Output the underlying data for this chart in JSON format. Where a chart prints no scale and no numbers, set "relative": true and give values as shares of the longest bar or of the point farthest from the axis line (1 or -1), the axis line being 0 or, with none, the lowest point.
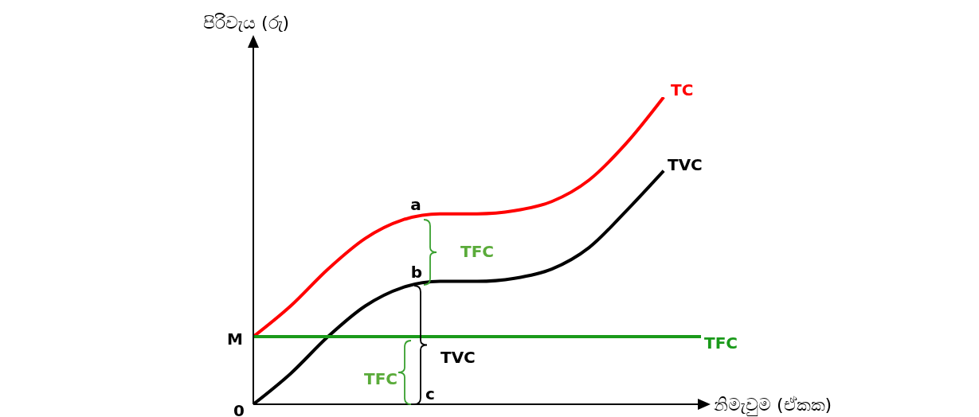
{
  "chart_data": {
    "type": "line",
    "relative": true,
    "xlabel": "නිමැවුම (ඒකක)",
    "ylabel": "පිරිවැය (රු)",
    "categories": [
      null,
      null,
      null,
      null,
      null,
      null,
      null,
      null,
      null,
      null,
      null,
      null,
      null
    ],
    "series": [
      {
        "name": "TC",
        "color": "#ff0000",
        "values": [
          0.22,
          0.32,
          0.44,
          0.54,
          0.6,
          0.62,
          0.62,
          0.63,
          0.66,
          0.73,
          0.85,
          1,
          null
        ]
      },
      {
        "name": "TVC",
        "color": "#000000",
        "values": [
          0,
          0.1,
          0.22,
          0.32,
          0.38,
          0.4,
          0.4,
          0.41,
          0.44,
          0.51,
          0.63,
          0.76,
          null
        ]
      },
      {
        "name": "TFC",
        "color": "#1a9a1a",
        "values": [
          0.22,
          0.22,
          0.22,
          0.22,
          0.22,
          0.22,
          0.22,
          0.22,
          0.22,
          0.22,
          0.22,
          0.22,
          0.22
        ]
      }
    ],
    "annotations": [
      {
        "text": "a",
        "y": 0.6
      },
      {
        "text": "b",
        "y": 0.38
      },
      "c",
      "M",
      "0",
      "TFC",
      "TVC",
      "TFC"
    ],
    "marker": "none",
    "line_style": "solid",
    "grid": false
  }
}
